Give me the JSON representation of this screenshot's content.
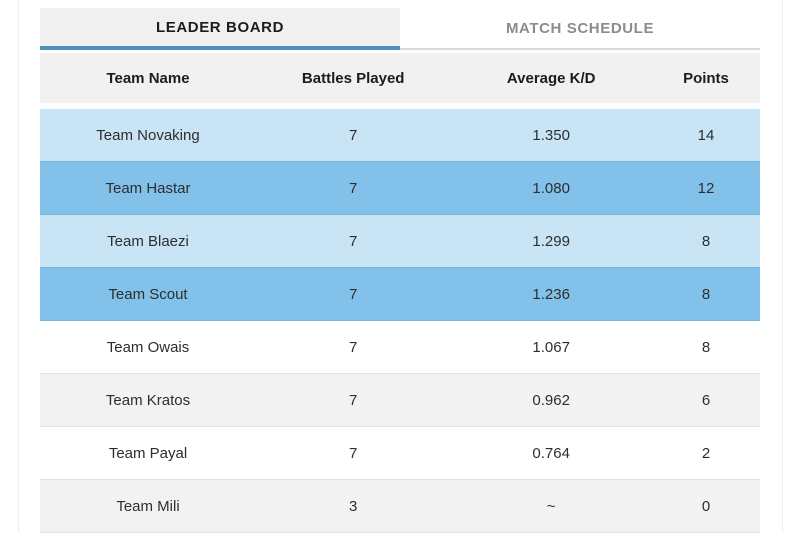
{
  "page": {
    "background": "#ffffff",
    "edge_line_color": "#ededed"
  },
  "tabs": [
    {
      "label": "LEADER BOARD",
      "active": true
    },
    {
      "label": "MATCH SCHEDULE",
      "active": false
    }
  ],
  "colors": {
    "edge_line": "#ededed",
    "active_tab_bg": "#f0f0f0",
    "active_tab_text": "#1c1c1c",
    "active_tab_underline": "#4b91c0",
    "inactive_tab_text": "#8c8c8c",
    "inactive_tab_border": "#d8d8d8",
    "header_bg": "#f1f1f1",
    "header_text": "#1c1c1c",
    "row_blue_light": "#c8e4f5",
    "row_blue_medium": "#82c2ea",
    "row_gray": "#f2f2f2",
    "row_white": "#ffffff",
    "cell_text": "#2e2e2e",
    "row_divider": "#e3e3e3"
  },
  "table": {
    "columns": [
      "Team Name",
      "Battles Played",
      "Average K/D",
      "Points"
    ],
    "rows": [
      {
        "team": "Team Novaking",
        "battles_played": "7",
        "average_kd": "1.350",
        "points": "14",
        "style": "blue-light"
      },
      {
        "team": "Team Hastar",
        "battles_played": "7",
        "average_kd": "1.080",
        "points": "12",
        "style": "blue-medium"
      },
      {
        "team": "Team Blaezi",
        "battles_played": "7",
        "average_kd": "1.299",
        "points": "8",
        "style": "blue-light"
      },
      {
        "team": "Team Scout",
        "battles_played": "7",
        "average_kd": "1.236",
        "points": "8",
        "style": "blue-medium"
      },
      {
        "team": "Team Owais",
        "battles_played": "7",
        "average_kd": "1.067",
        "points": "8",
        "style": "white"
      },
      {
        "team": "Team Kratos",
        "battles_played": "7",
        "average_kd": "0.962",
        "points": "6",
        "style": "gray"
      },
      {
        "team": "Team Payal",
        "battles_played": "7",
        "average_kd": "0.764",
        "points": "2",
        "style": "white"
      },
      {
        "team": "Team Mili",
        "battles_played": "3",
        "average_kd": "~",
        "points": "0",
        "style": "gray"
      }
    ]
  }
}
